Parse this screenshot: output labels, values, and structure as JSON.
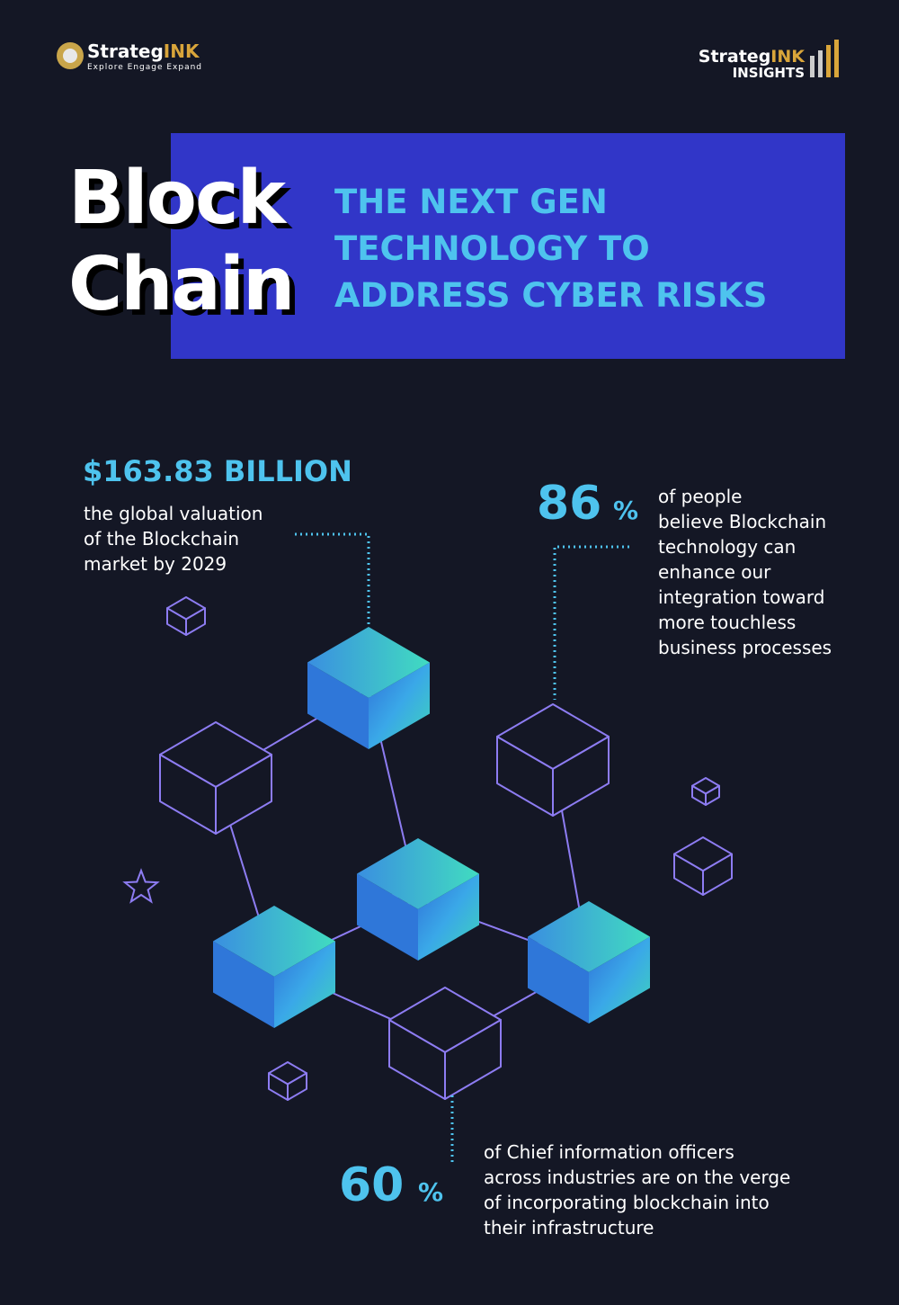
{
  "header": {
    "left_logo": {
      "name_part1": "Strateg",
      "name_part2": "INK",
      "tagline": "Explore Engage Expand"
    },
    "right_logo": {
      "name_part1": "Strateg",
      "name_part2": "INK",
      "line2": "INSIGHTS"
    }
  },
  "title": {
    "line1": "Block",
    "line2": "Chain"
  },
  "subtitle": {
    "lines": [
      "THE NEXT GEN",
      "TECHNOLOGY TO",
      "ADDRESS CYBER RISKS"
    ]
  },
  "stats": [
    {
      "value": "$163.83 BILLION",
      "description": [
        "the global valuation",
        "of the Blockchain",
        "market by 2029"
      ]
    },
    {
      "value": 86,
      "unit": "%",
      "description": [
        "of people",
        "believe Blockchain",
        "technology can",
        "enhance our",
        "integration toward",
        "more touchless",
        "business processes"
      ]
    },
    {
      "value": 60,
      "unit": "%",
      "description": [
        "of Chief information officers",
        "across industries are on the verge",
        "of incorporating blockchain into",
        "their infrastructure"
      ]
    }
  ]
}
